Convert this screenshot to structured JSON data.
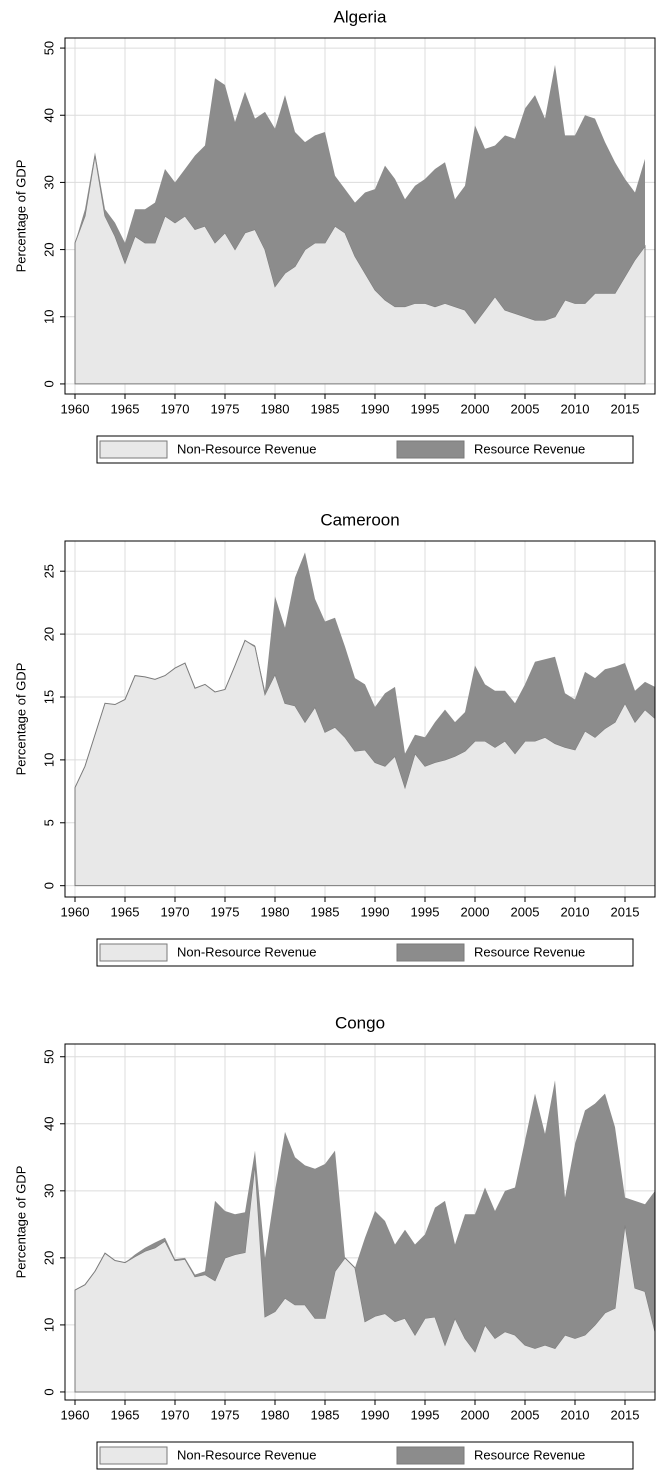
{
  "chart_data": [
    {
      "type": "area",
      "title": "Algeria",
      "y_label": "Percentage of GDP",
      "x": [
        1960,
        1961,
        1962,
        1963,
        1964,
        1965,
        1966,
        1967,
        1968,
        1969,
        1970,
        1971,
        1972,
        1973,
        1974,
        1975,
        1976,
        1977,
        1978,
        1979,
        1980,
        1981,
        1982,
        1983,
        1984,
        1985,
        1986,
        1987,
        1988,
        1989,
        1990,
        1991,
        1992,
        1993,
        1994,
        1995,
        1996,
        1997,
        1998,
        1999,
        2000,
        2001,
        2002,
        2003,
        2004,
        2005,
        2006,
        2007,
        2008,
        2009,
        2010,
        2011,
        2012,
        2013,
        2014,
        2015,
        2016,
        2017
      ],
      "series": [
        {
          "name": "Non-Resource Revenue",
          "color": "#e8e8e8",
          "values": [
            21,
            25,
            34,
            25,
            22,
            18,
            22,
            21,
            21,
            25,
            24,
            25,
            23,
            23.5,
            21,
            22.5,
            20,
            22.5,
            23,
            20,
            14.5,
            16.5,
            17.5,
            20,
            21,
            21,
            23.5,
            22.5,
            19,
            16.5,
            14,
            12.5,
            11.5,
            11.5,
            12,
            12,
            11.5,
            12,
            11.5,
            11,
            9,
            11,
            13,
            11,
            10.5,
            10,
            9.5,
            9.5,
            10,
            12.5,
            12,
            12,
            13.5,
            13.5,
            13.5,
            16,
            18.5,
            20.5
          ]
        },
        {
          "name": "Resource Revenue",
          "color": "#8c8c8c",
          "values": [
            0,
            1,
            0.5,
            1,
            2,
            3,
            4,
            5,
            6,
            7,
            6,
            7,
            11,
            12,
            24.5,
            22,
            19,
            21,
            16.5,
            20.5,
            23.5,
            26.5,
            20,
            16,
            16,
            16.5,
            7.5,
            6.5,
            8,
            12,
            15,
            20,
            19,
            16,
            17.5,
            18.5,
            20.5,
            21,
            16,
            18.5,
            29.5,
            24,
            22.5,
            26,
            26,
            31,
            33.5,
            30,
            37.5,
            24.5,
            25,
            28,
            26,
            22.5,
            19.5,
            14.5,
            10,
            13
          ]
        }
      ],
      "xlim": [
        1959,
        2018
      ],
      "xticks": [
        1960,
        1965,
        1970,
        1975,
        1980,
        1985,
        1990,
        1995,
        2000,
        2005,
        2010,
        2015
      ],
      "ylim": [
        -1.5,
        51.5
      ],
      "yticks": [
        0,
        10,
        20,
        30,
        40,
        50
      ],
      "grid": true,
      "stacked": true,
      "legend": "bottom"
    },
    {
      "type": "area",
      "title": "Cameroon",
      "y_label": "Percentage of GDP",
      "x": [
        1960,
        1961,
        1962,
        1963,
        1964,
        1965,
        1966,
        1967,
        1968,
        1969,
        1970,
        1971,
        1972,
        1973,
        1974,
        1975,
        1976,
        1977,
        1978,
        1979,
        1980,
        1981,
        1982,
        1983,
        1984,
        1985,
        1986,
        1987,
        1988,
        1989,
        1990,
        1991,
        1992,
        1993,
        1994,
        1995,
        1996,
        1997,
        1998,
        1999,
        2000,
        2001,
        2002,
        2003,
        2004,
        2005,
        2006,
        2007,
        2008,
        2009,
        2010,
        2011,
        2012,
        2013,
        2014,
        2015,
        2016,
        2017,
        2018
      ],
      "series": [
        {
          "name": "Non-Resource Revenue",
          "color": "#e8e8e8",
          "values": [
            7.8,
            9.5,
            12,
            14.5,
            14.4,
            14.8,
            16.7,
            16.6,
            16.4,
            16.7,
            17.3,
            17.7,
            15.7,
            16,
            15.4,
            15.6,
            17.5,
            19.5,
            19,
            15.2,
            16.8,
            14.5,
            14.3,
            13,
            14.2,
            12.2,
            12.6,
            11.8,
            10.7,
            10.8,
            9.8,
            9.5,
            10.3,
            7.8,
            10.5,
            9.5,
            9.8,
            10,
            10.3,
            10.7,
            11.5,
            11.5,
            11,
            11.5,
            10.5,
            11.5,
            11.5,
            11.8,
            11.3,
            11,
            10.8,
            12.3,
            11.8,
            12.5,
            13,
            14.5,
            13,
            14,
            13.3
          ]
        },
        {
          "name": "Resource Revenue",
          "color": "#8c8c8c",
          "values": [
            0,
            0,
            0,
            0,
            0,
            0,
            0,
            0,
            0,
            0,
            0,
            0,
            0,
            0,
            0,
            0,
            0,
            0,
            0.1,
            0.3,
            6.2,
            6,
            10.2,
            13.5,
            8.6,
            8.8,
            8.7,
            7.2,
            5.8,
            5.2,
            4.4,
            5.8,
            5.5,
            2.7,
            1.5,
            2.3,
            3.2,
            4,
            2.7,
            3.1,
            6,
            4.5,
            4.5,
            4,
            4,
            4.5,
            6.3,
            6.2,
            6.9,
            4.3,
            4,
            4.7,
            4.7,
            4.7,
            4.4,
            3.2,
            2.5,
            2.2,
            2.5
          ]
        }
      ],
      "xlim": [
        1959,
        2018
      ],
      "xticks": [
        1960,
        1965,
        1970,
        1975,
        1980,
        1985,
        1990,
        1995,
        2000,
        2005,
        2010,
        2015
      ],
      "ylim": [
        -0.9,
        27.4
      ],
      "yticks": [
        0,
        5,
        10,
        15,
        20,
        25
      ],
      "grid": true,
      "stacked": true,
      "legend": "bottom"
    },
    {
      "type": "area",
      "title": "Congo",
      "y_label": "Percentage of GDP",
      "x": [
        1960,
        1961,
        1962,
        1963,
        1964,
        1965,
        1966,
        1967,
        1968,
        1969,
        1970,
        1971,
        1972,
        1973,
        1974,
        1975,
        1976,
        1977,
        1978,
        1979,
        1980,
        1981,
        1982,
        1983,
        1984,
        1985,
        1986,
        1987,
        1988,
        1989,
        1990,
        1991,
        1992,
        1993,
        1994,
        1995,
        1996,
        1997,
        1998,
        1999,
        2000,
        2001,
        2002,
        2003,
        2004,
        2005,
        2006,
        2007,
        2008,
        2009,
        2010,
        2011,
        2012,
        2013,
        2014,
        2015,
        2016,
        2017,
        2018
      ],
      "series": [
        {
          "name": "Non-Resource Revenue",
          "color": "#e8e8e8",
          "values": [
            15.2,
            16,
            18,
            20.7,
            19.6,
            19.3,
            20.2,
            21,
            21.5,
            22.5,
            19.6,
            19.8,
            17.2,
            17.5,
            16.6,
            20,
            20.5,
            20.8,
            34,
            11.2,
            12,
            14,
            13,
            13,
            11,
            11,
            18,
            20,
            18.5,
            10.5,
            11.3,
            11.7,
            10.5,
            11,
            8.5,
            11,
            11.2,
            7,
            11,
            8,
            6,
            10,
            8,
            9,
            8.5,
            7,
            6.5,
            7,
            6.5,
            8.5,
            8,
            8.5,
            10,
            11.8,
            12.5,
            25,
            15.5,
            15,
            9
          ]
        },
        {
          "name": "Resource Revenue",
          "color": "#8c8c8c",
          "values": [
            0,
            0,
            0,
            0,
            0,
            0,
            0.3,
            0.5,
            0.8,
            0.5,
            0.2,
            0.2,
            0.3,
            0.5,
            11.9,
            7,
            6,
            6,
            2,
            8.8,
            18,
            24.8,
            22,
            20.8,
            22.3,
            23,
            18,
            0,
            0,
            12.5,
            15.7,
            13.8,
            11.5,
            13.2,
            13.5,
            12.5,
            16.3,
            21.5,
            11,
            18.5,
            20.5,
            20.5,
            19,
            21,
            22,
            30.5,
            38,
            31.5,
            40,
            20.5,
            29,
            33.5,
            33,
            32.7,
            27,
            4,
            13,
            13,
            21
          ]
        }
      ],
      "xlim": [
        1959,
        2018
      ],
      "xticks": [
        1960,
        1965,
        1970,
        1975,
        1980,
        1985,
        1990,
        1995,
        2000,
        2005,
        2010,
        2015
      ],
      "ylim": [
        -1.2,
        51.9
      ],
      "yticks": [
        0,
        10,
        20,
        30,
        40,
        50
      ],
      "grid": true,
      "stacked": true,
      "legend": "bottom"
    }
  ]
}
